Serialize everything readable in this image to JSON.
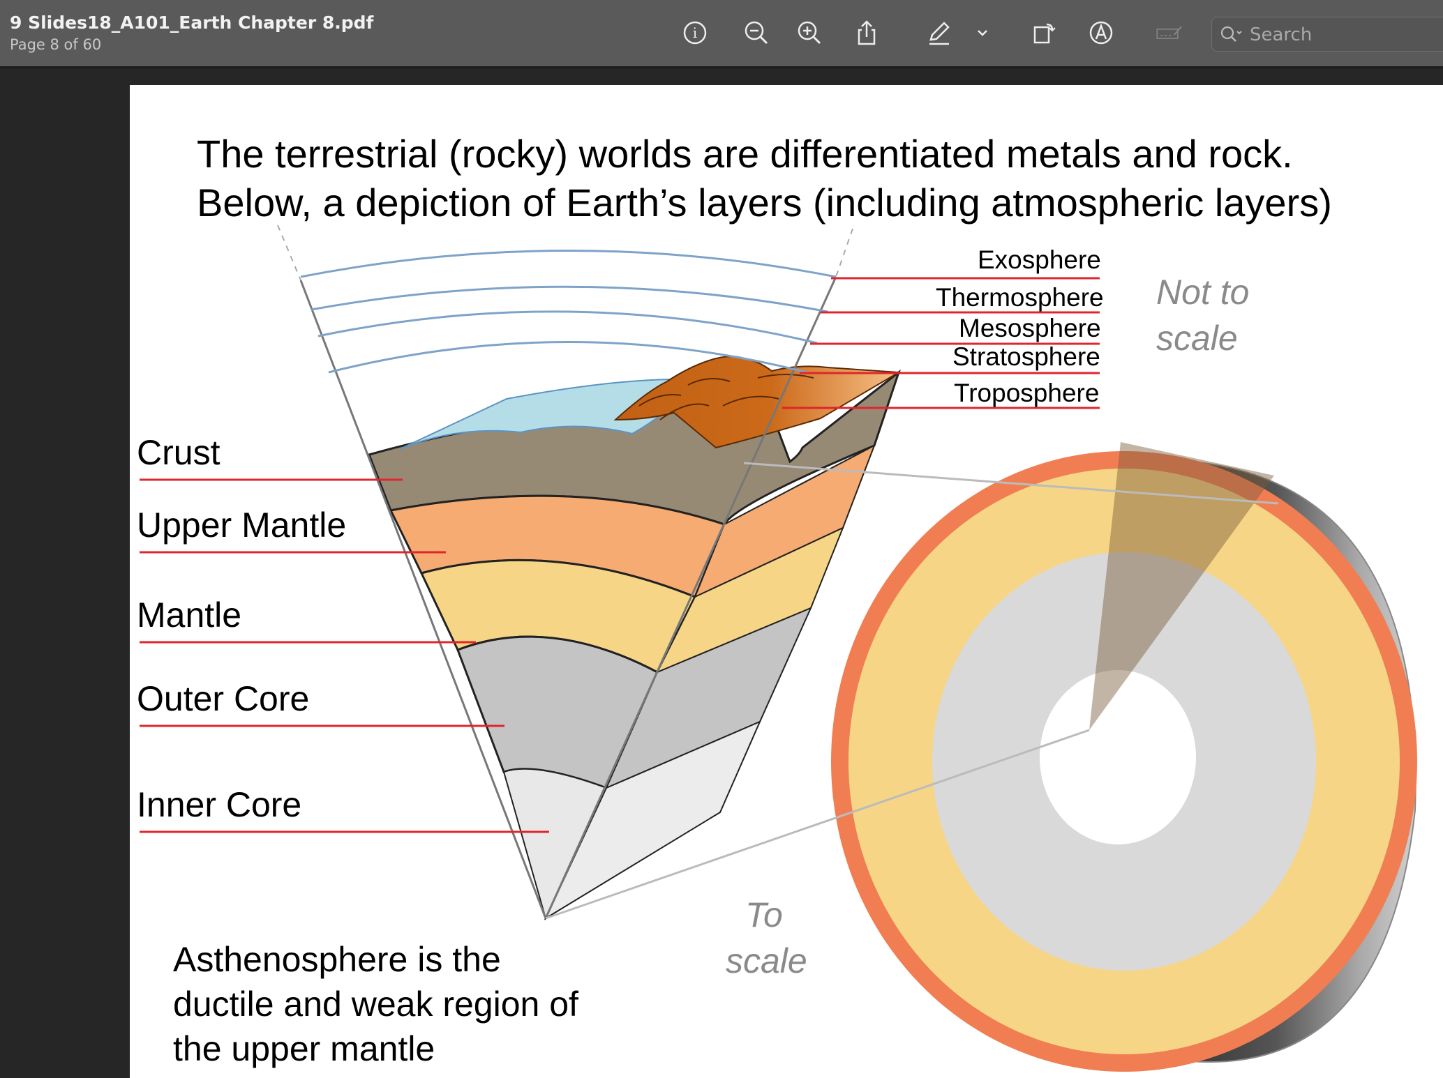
{
  "window": {
    "doc_title": "9 Slides18_A101_Earth Chapter 8.pdf",
    "page_info": "Page 8 of 60"
  },
  "toolbar": {
    "icons": [
      "info-icon",
      "zoom-out-icon",
      "zoom-in-icon",
      "share-icon",
      "markup-pen-icon",
      "chevron-down-icon",
      "rotate-icon",
      "annotate-icon",
      "signature-icon"
    ],
    "search_placeholder": "Search"
  },
  "slide": {
    "title_line1": "The terrestrial (rocky) worlds are differentiated metals and rock.",
    "title_line2": "Below, a depiction of Earth’s layers (including atmospheric layers)",
    "interior_layers": [
      "Crust",
      "Upper Mantle",
      "Mantle",
      "Outer Core",
      "Inner Core"
    ],
    "atmosphere_layers": [
      "Exosphere",
      "Thermosphere",
      "Mesosphere",
      "Stratosphere",
      "Troposphere"
    ],
    "not_to_scale": [
      "Not to",
      "scale"
    ],
    "to_scale": [
      "To",
      "scale"
    ],
    "caption_lines": [
      "Asthenosphere is the",
      "ductile and weak region of",
      "the upper mantle"
    ]
  },
  "colors": {
    "crust": "#968a75",
    "upper_mantle": "#f5ab72",
    "mantle": "#f6d686",
    "outer_core": "#c4c4c4",
    "inner_core": "#e8e8e8",
    "ocean": "#b5dde8",
    "mountain": "#c86a1a",
    "leader_line": "#e0252b",
    "atmosphere_line": "#7ea3c8",
    "globe_crust": "#f07e52"
  }
}
